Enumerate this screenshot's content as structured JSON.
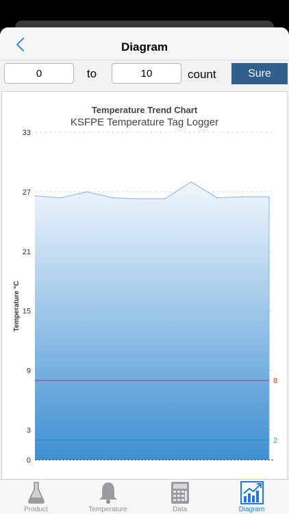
{
  "nav": {
    "title": "Diagram"
  },
  "range": {
    "from_value": "0",
    "to_label": "to",
    "to_value": "10",
    "count_label": "count",
    "sure_label": "Sure"
  },
  "chart_data": {
    "type": "area",
    "title": "Temperature Trend Chart",
    "subtitle": "KSFPE Temperature Tag Logger",
    "ylabel": "Temperature °C",
    "xlabel": "",
    "ylim": [
      0,
      33
    ],
    "yticks": [
      "0",
      "3",
      "9",
      "15",
      "21",
      "27",
      "33"
    ],
    "x": [
      0,
      1,
      2,
      3,
      4,
      5,
      6,
      7,
      8,
      9
    ],
    "values": [
      26.6,
      26.4,
      27.0,
      26.4,
      26.3,
      26.3,
      28.0,
      26.4,
      26.5,
      26.5
    ],
    "thresholds": [
      {
        "label": "8",
        "value": 8,
        "color": "#c0392b"
      },
      {
        "label": "2",
        "value": 2,
        "color": "#27ae60"
      }
    ],
    "colors": {
      "line": "#7fb4e0",
      "fill_top": "#f2f7fd",
      "fill_bottom": "#3e8fd2"
    },
    "grid": true
  },
  "tabs": [
    {
      "label": "Product",
      "icon": "flask-icon",
      "active": false
    },
    {
      "label": "Temperature",
      "icon": "bell-icon",
      "active": false
    },
    {
      "label": "Data",
      "icon": "calculator-icon",
      "active": false
    },
    {
      "label": "Diagram",
      "icon": "chart-icon",
      "active": true
    }
  ]
}
